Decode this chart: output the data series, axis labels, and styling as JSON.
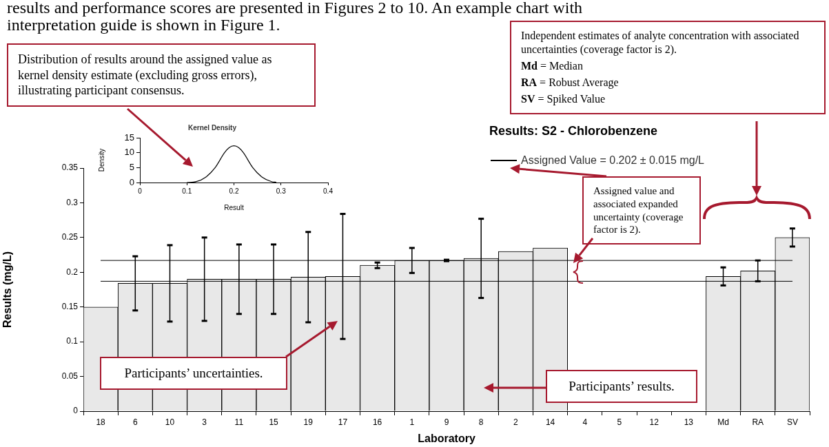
{
  "chart_data": [
    {
      "type": "bar",
      "title": "Results: S2 - Chlorobenzene",
      "xlabel": "Laboratory",
      "ylabel": "Results (mg/L)",
      "categories": [
        "18",
        "6",
        "10",
        "3",
        "11",
        "15",
        "19",
        "17",
        "16",
        "1",
        "9",
        "8",
        "2",
        "14",
        "4",
        "5",
        "12",
        "13",
        "Md",
        "RA",
        "SV"
      ],
      "values": [
        0.15,
        0.184,
        0.184,
        0.19,
        0.19,
        0.19,
        0.193,
        0.194,
        0.21,
        0.217,
        0.217,
        0.22,
        0.23,
        0.235,
        null,
        null,
        null,
        null,
        0.194,
        0.202,
        0.25
      ],
      "errors": [
        null,
        0.039,
        0.055,
        0.06,
        0.05,
        0.05,
        0.065,
        0.09,
        0.004,
        0.018,
        0.001,
        0.057,
        null,
        null,
        null,
        null,
        null,
        null,
        0.013,
        0.015,
        0.013
      ],
      "color": "#e8e8e8",
      "ylim": [
        0,
        0.35
      ],
      "yticks": [
        0,
        0.05,
        0.1,
        0.15,
        0.2,
        0.25,
        0.3,
        0.35
      ],
      "ref_lines": [
        {
          "axis": "y",
          "value": 0.217,
          "color": "#000000"
        },
        {
          "axis": "y",
          "value": 0.187,
          "color": "#000000"
        }
      ],
      "annotations": [
        "Assigned Value = 0.202 ± 0.015 mg/L",
        "results and performance scores are presented in Figures 2 to 10. An example chart with",
        "interpretation guide is shown in Figure 1.",
        "Distribution of results around the assigned value as kernel density estimate (excluding gross errors), illustrating participant consensus.",
        "Independent estimates of analyte concentration with associated uncertainties (coverage factor is 2).\nMd = Median\nRA = Robust Average\nSV = Spiked Value",
        "Assigned value and associated expanded uncertainty (coverage factor is 2).",
        "Participants’ uncertainties.",
        "Participants’ results."
      ]
    },
    {
      "type": "line",
      "title": "Kernel Density",
      "xlabel": "Result",
      "ylabel": "Density",
      "x": [
        0.1,
        0.12,
        0.14,
        0.16,
        0.18,
        0.19,
        0.2,
        0.21,
        0.22,
        0.24,
        0.26,
        0.28,
        0.29
      ],
      "values": [
        0,
        0.3,
        1.8,
        5,
        10,
        11.7,
        12.3,
        11.7,
        10,
        5,
        1.8,
        0.3,
        0.1
      ],
      "color": "#000000",
      "marker": "none",
      "xlim": [
        0,
        0.4
      ],
      "xticks": [
        0,
        0.1,
        0.2,
        0.3,
        0.4
      ],
      "ylim": [
        0,
        15
      ],
      "yticks": [
        0,
        5,
        10,
        15
      ]
    }
  ]
}
